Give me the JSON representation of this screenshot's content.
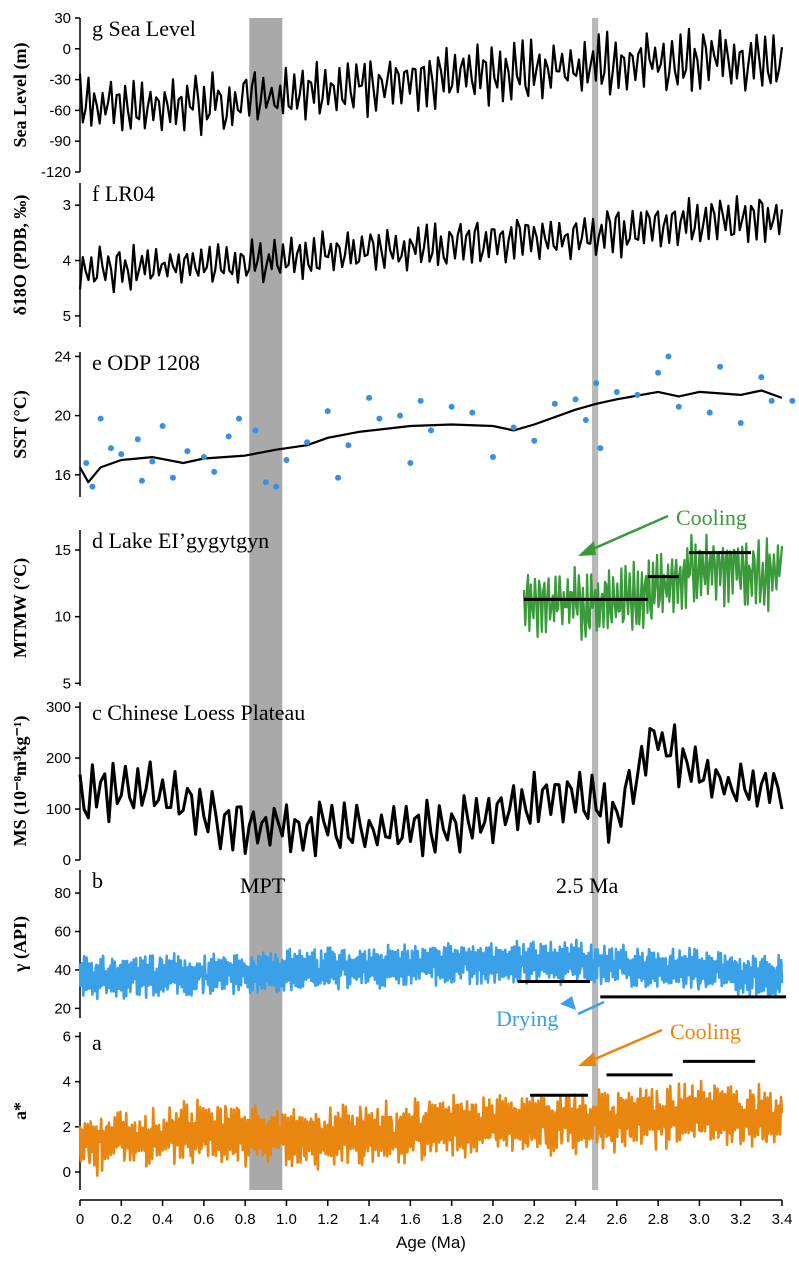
{
  "colors": {
    "black": "#000000",
    "blue": "#3aa0e8",
    "green": "#3a9a3a",
    "orange": "#e8860f",
    "shade_mpt": "#a9a9a9",
    "shade_25": "#b8b8b8"
  },
  "xaxis": {
    "label": "Age (Ma)",
    "range": [
      0,
      3.4
    ],
    "ticks": [
      "0",
      "0.2",
      "0.4",
      "0.6",
      "0.8",
      "1.0",
      "1.2",
      "1.4",
      "1.6",
      "1.8",
      "2.0",
      "2.2",
      "2.4",
      "2.6",
      "2.8",
      "3.0",
      "3.2",
      "3.4"
    ]
  },
  "shading": [
    {
      "label": "MPT",
      "from": 0.82,
      "to": 0.98
    },
    {
      "label": "2.5 Ma",
      "from": 2.48,
      "to": 2.51
    }
  ],
  "panels": [
    {
      "id": "g",
      "letter": "g",
      "name": "Sea Level",
      "ylabel": "Sea Level (m)",
      "ylim": [
        -120,
        30
      ],
      "invert": false,
      "ticks": [
        "30",
        "0",
        "-30",
        "-60",
        "-90",
        "-120"
      ],
      "tick_values": [
        30,
        0,
        -30,
        -60,
        -90,
        -120
      ],
      "color": "#000000"
    },
    {
      "id": "f",
      "letter": "f",
      "name": "LR04",
      "ylabel": "δ18O (PDB, ‰)",
      "ylim": [
        5.2,
        2.6
      ],
      "invert": true,
      "ticks": [
        "3",
        "4",
        "5"
      ],
      "tick_values": [
        3,
        4,
        5
      ],
      "color": "#000000"
    },
    {
      "id": "e",
      "letter": "e",
      "name": "ODP 1208",
      "ylabel": "SST (°C)",
      "ylim": [
        14.5,
        24.3
      ],
      "invert": false,
      "ticks": [
        "24",
        "20",
        "16"
      ],
      "tick_values": [
        24,
        20,
        16
      ],
      "color": "#000000"
    },
    {
      "id": "d",
      "letter": "d",
      "name": "Lake EI’gygytgyn",
      "ylabel": "MTMW (°C)",
      "ylim": [
        4.8,
        16.5
      ],
      "invert": false,
      "ticks": [
        "15",
        "10",
        "5"
      ],
      "tick_values": [
        15,
        10,
        5
      ],
      "color": "#3a9a3a"
    },
    {
      "id": "c",
      "letter": "c",
      "name": "Chinese Loess Plateau",
      "ylabel": "MS (10⁻⁸m³kg⁻¹)",
      "ylim": [
        0,
        310
      ],
      "invert": false,
      "ticks": [
        "300",
        "200",
        "100",
        "0"
      ],
      "tick_values": [
        300,
        200,
        100,
        0
      ],
      "color": "#000000"
    },
    {
      "id": "b",
      "letter": "b",
      "name": "",
      "ylabel": "γ (API)",
      "ylim": [
        15,
        92
      ],
      "invert": false,
      "ticks": [
        "80",
        "60",
        "40",
        "20"
      ],
      "tick_values": [
        80,
        60,
        40,
        20
      ],
      "color": "#3aa0e8"
    },
    {
      "id": "a",
      "letter": "a",
      "name": "",
      "ylabel": "a*",
      "ylim": [
        -0.8,
        6.2
      ],
      "invert": false,
      "ticks": [
        "6",
        "4",
        "2",
        "0"
      ],
      "tick_values": [
        6,
        4,
        2,
        0
      ],
      "color": "#e8860f"
    }
  ],
  "annotations": {
    "mpt": "MPT",
    "ma25": "2.5 Ma",
    "cooling_d": "Cooling",
    "drying_b": "Drying",
    "cooling_a": "Cooling"
  },
  "chart_data": {
    "type": "line",
    "x_unit": "Ma",
    "series": [
      {
        "name": "Sea Level",
        "panel": "g",
        "trend": [
          [
            0,
            -55
          ],
          [
            0.4,
            -55
          ],
          [
            0.9,
            -50
          ],
          [
            1.2,
            -40
          ],
          [
            1.6,
            -30
          ],
          [
            2.0,
            -25
          ],
          [
            2.5,
            -15
          ],
          [
            3.0,
            -10
          ],
          [
            3.4,
            -15
          ]
        ],
        "amplitude": 35,
        "period": 0.041,
        "style": "line"
      },
      {
        "name": "LR04",
        "panel": "f",
        "trend": [
          [
            0,
            4.2
          ],
          [
            0.4,
            4.1
          ],
          [
            0.9,
            4.0
          ],
          [
            1.2,
            3.9
          ],
          [
            1.6,
            3.75
          ],
          [
            2.0,
            3.65
          ],
          [
            2.5,
            3.55
          ],
          [
            3.0,
            3.3
          ],
          [
            3.4,
            3.2
          ]
        ],
        "amplitude": 0.5,
        "period": 0.041,
        "style": "line"
      },
      {
        "name": "ODP 1208 SST (smoothed)",
        "panel": "e",
        "points": [
          [
            0,
            16.5
          ],
          [
            0.04,
            15.5
          ],
          [
            0.1,
            16.5
          ],
          [
            0.2,
            17
          ],
          [
            0.35,
            17.2
          ],
          [
            0.5,
            16.8
          ],
          [
            0.6,
            17.1
          ],
          [
            0.8,
            17.3
          ],
          [
            0.95,
            17.7
          ],
          [
            1.1,
            18.0
          ],
          [
            1.2,
            18.5
          ],
          [
            1.35,
            18.9
          ],
          [
            1.6,
            19.3
          ],
          [
            1.8,
            19.4
          ],
          [
            2.0,
            19.3
          ],
          [
            2.1,
            19.0
          ],
          [
            2.2,
            19.4
          ],
          [
            2.4,
            20.4
          ],
          [
            2.5,
            20.8
          ],
          [
            2.6,
            21.1
          ],
          [
            2.8,
            21.6
          ],
          [
            2.9,
            21.3
          ],
          [
            3.0,
            21.6
          ],
          [
            3.2,
            21.4
          ],
          [
            3.3,
            21.7
          ],
          [
            3.4,
            21.2
          ]
        ],
        "style": "line"
      },
      {
        "name": "ODP 1208 SST (samples)",
        "panel": "e",
        "points": [
          [
            0.03,
            16.8
          ],
          [
            0.06,
            15.2
          ],
          [
            0.1,
            19.8
          ],
          [
            0.15,
            17.8
          ],
          [
            0.2,
            17.4
          ],
          [
            0.28,
            18.4
          ],
          [
            0.3,
            15.6
          ],
          [
            0.35,
            16.9
          ],
          [
            0.4,
            19.3
          ],
          [
            0.45,
            15.8
          ],
          [
            0.52,
            17.6
          ],
          [
            0.6,
            17.2
          ],
          [
            0.65,
            16.2
          ],
          [
            0.72,
            18.6
          ],
          [
            0.77,
            19.8
          ],
          [
            0.85,
            19.0
          ],
          [
            0.9,
            15.5
          ],
          [
            0.95,
            15.2
          ],
          [
            1.0,
            17.0
          ],
          [
            1.1,
            18.2
          ],
          [
            1.2,
            20.3
          ],
          [
            1.25,
            15.8
          ],
          [
            1.3,
            18.0
          ],
          [
            1.4,
            21.2
          ],
          [
            1.45,
            19.8
          ],
          [
            1.55,
            20.0
          ],
          [
            1.6,
            16.8
          ],
          [
            1.65,
            21.0
          ],
          [
            1.7,
            19.0
          ],
          [
            1.8,
            20.6
          ],
          [
            1.9,
            20.2
          ],
          [
            2.0,
            17.2
          ],
          [
            2.1,
            19.2
          ],
          [
            2.2,
            18.3
          ],
          [
            2.3,
            20.8
          ],
          [
            2.4,
            21.1
          ],
          [
            2.45,
            19.7
          ],
          [
            2.5,
            22.2
          ],
          [
            2.52,
            17.8
          ],
          [
            2.6,
            21.6
          ],
          [
            2.7,
            21.4
          ],
          [
            2.8,
            22.9
          ],
          [
            2.85,
            24.0
          ],
          [
            2.9,
            20.6
          ],
          [
            3.05,
            20.2
          ],
          [
            3.1,
            23.3
          ],
          [
            3.2,
            19.5
          ],
          [
            3.3,
            22.6
          ],
          [
            3.35,
            21.0
          ],
          [
            3.45,
            21.0
          ]
        ],
        "style": "scatter",
        "color": "#3a8fe0"
      },
      {
        "name": "Lake EI’gygytgyn MTMW",
        "panel": "d",
        "trend": [
          [
            2.15,
            11.0
          ],
          [
            2.5,
            11.0
          ],
          [
            2.75,
            11.5
          ],
          [
            2.9,
            13.0
          ],
          [
            3.1,
            13.8
          ],
          [
            3.3,
            13.0
          ],
          [
            3.4,
            13.5
          ]
        ],
        "amplitude": 3.2,
        "period": 0.02,
        "x_range": [
          2.15,
          3.4
        ],
        "style": "line"
      },
      {
        "name": "Chinese Loess Plateau MS",
        "panel": "c",
        "trend": [
          [
            0,
            130
          ],
          [
            0.3,
            140
          ],
          [
            0.5,
            120
          ],
          [
            0.7,
            70
          ],
          [
            1.0,
            60
          ],
          [
            1.2,
            70
          ],
          [
            1.6,
            55
          ],
          [
            1.9,
            80
          ],
          [
            2.1,
            100
          ],
          [
            2.4,
            130
          ],
          [
            2.6,
            80
          ],
          [
            2.78,
            240
          ],
          [
            3.0,
            170
          ],
          [
            3.4,
            130
          ]
        ],
        "amplitude": 70,
        "period": 0.06,
        "style": "line"
      },
      {
        "name": "γ (API)",
        "panel": "b",
        "trend": [
          [
            0,
            36
          ],
          [
            0.6,
            38
          ],
          [
            1.2,
            40
          ],
          [
            1.8,
            44
          ],
          [
            2.4,
            44
          ],
          [
            3.0,
            40
          ],
          [
            3.4,
            36
          ]
        ],
        "amplitude": 13,
        "period": 0.012,
        "style": "line"
      },
      {
        "name": "a*",
        "panel": "a",
        "trend": [
          [
            0,
            1.2
          ],
          [
            0.6,
            1.8
          ],
          [
            1.2,
            1.5
          ],
          [
            1.8,
            2.0
          ],
          [
            2.4,
            2.2
          ],
          [
            3.0,
            2.6
          ],
          [
            3.4,
            2.4
          ]
        ],
        "amplitude": 1.6,
        "period": 0.014,
        "style": "line"
      }
    ],
    "mean_bars": [
      {
        "panel": "d",
        "from": 2.15,
        "to": 2.75,
        "y": 11.3
      },
      {
        "panel": "d",
        "from": 2.75,
        "to": 2.9,
        "y": 13.0
      },
      {
        "panel": "d",
        "from": 2.95,
        "to": 3.25,
        "y": 14.8
      },
      {
        "panel": "b",
        "from": 2.12,
        "to": 2.47,
        "y": 34
      },
      {
        "panel": "b",
        "from": 2.52,
        "to": 3.42,
        "y": 26
      },
      {
        "panel": "a",
        "from": 2.18,
        "to": 2.46,
        "y": 3.4
      },
      {
        "panel": "a",
        "from": 2.55,
        "to": 2.87,
        "y": 4.3
      },
      {
        "panel": "a",
        "from": 2.92,
        "to": 3.27,
        "y": 4.9
      }
    ]
  }
}
